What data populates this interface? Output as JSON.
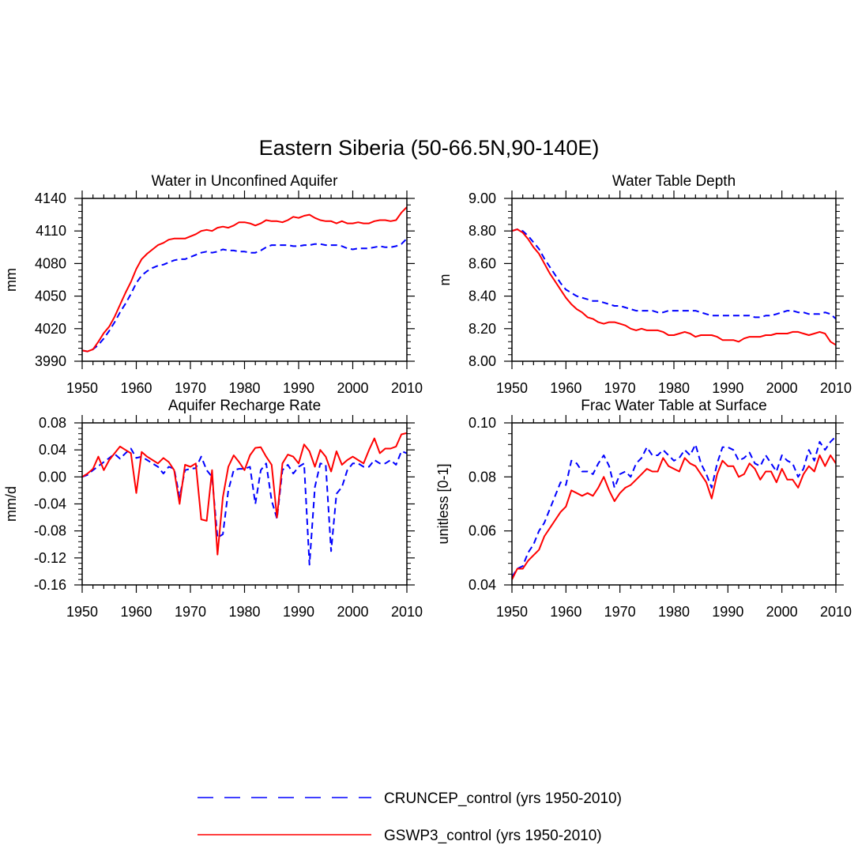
{
  "chart_data": {
    "title": "Eastern Siberia (50-66.5N,90-140E)",
    "legend": [
      {
        "name": "CRUNCEP_control (yrs 1950-2010)",
        "color": "#0000ff",
        "style": "dashed"
      },
      {
        "name": "GSWP3_control (yrs 1950-2010)",
        "color": "#ff0000",
        "style": "solid"
      }
    ],
    "panels": [
      {
        "type": "line",
        "title": "Water in Unconfined Aquifer",
        "xlabel": "",
        "ylabel": "mm",
        "xlim": [
          1950,
          2010
        ],
        "ylim": [
          3990,
          4140
        ],
        "xticks": [
          1950,
          1960,
          1970,
          1980,
          1990,
          2000,
          2010
        ],
        "yticks": [
          3990,
          4020,
          4050,
          4080,
          4110,
          4140
        ],
        "ytick_labels": [
          "3990",
          "4020",
          "4050",
          "4080",
          "4110",
          "4140"
        ],
        "x": [
          1950,
          1951,
          1952,
          1953,
          1954,
          1955,
          1956,
          1957,
          1958,
          1959,
          1960,
          1961,
          1962,
          1963,
          1964,
          1965,
          1966,
          1967,
          1968,
          1969,
          1970,
          1971,
          1972,
          1973,
          1974,
          1975,
          1976,
          1977,
          1978,
          1979,
          1980,
          1981,
          1982,
          1983,
          1984,
          1985,
          1986,
          1987,
          1988,
          1989,
          1990,
          1991,
          1992,
          1993,
          1994,
          1995,
          1996,
          1997,
          1998,
          1999,
          2000,
          2001,
          2002,
          2003,
          2004,
          2005,
          2006,
          2007,
          2008,
          2009,
          2010
        ],
        "series": [
          {
            "name": "CRUNCEP_control (yrs 1950-2010)",
            "values": [
              4000,
              3999,
              4001,
              4005,
              4011,
              4018,
              4026,
              4035,
              4043,
              4052,
              4062,
              4069,
              4073,
              4076,
              4078,
              4079,
              4081,
              4083,
              4084,
              4084,
              4086,
              4088,
              4090,
              4091,
              4090,
              4091,
              4093,
              4092,
              4092,
              4091,
              4091,
              4090,
              4090,
              4092,
              4095,
              4097,
              4097,
              4097,
              4097,
              4096,
              4096,
              4097,
              4097,
              4098,
              4098,
              4097,
              4097,
              4097,
              4096,
              4094,
              4093,
              4094,
              4094,
              4094,
              4095,
              4096,
              4095,
              4095,
              4096,
              4098,
              4103
            ]
          },
          {
            "name": "GSWP3_control (yrs 1950-2010)",
            "values": [
              4000,
              3999,
              4001,
              4008,
              4016,
              4022,
              4031,
              4042,
              4053,
              4063,
              4075,
              4084,
              4089,
              4093,
              4097,
              4099,
              4102,
              4103,
              4103,
              4103,
              4105,
              4107,
              4110,
              4111,
              4110,
              4113,
              4114,
              4113,
              4115,
              4118,
              4118,
              4117,
              4115,
              4117,
              4120,
              4119,
              4119,
              4118,
              4120,
              4123,
              4122,
              4124,
              4125,
              4122,
              4120,
              4119,
              4119,
              4117,
              4119,
              4117,
              4117,
              4118,
              4117,
              4117,
              4119,
              4120,
              4120,
              4119,
              4120,
              4127,
              4132
            ]
          }
        ]
      },
      {
        "type": "line",
        "title": "Water Table Depth",
        "xlabel": "",
        "ylabel": "m",
        "xlim": [
          1950,
          2010
        ],
        "ylim": [
          8.0,
          9.0
        ],
        "xticks": [
          1950,
          1960,
          1970,
          1980,
          1990,
          2000,
          2010
        ],
        "yticks": [
          8.0,
          8.2,
          8.4,
          8.6,
          8.8,
          9.0
        ],
        "ytick_labels": [
          "8.00",
          "8.20",
          "8.40",
          "8.60",
          "8.80",
          "9.00"
        ],
        "x": [
          1950,
          1951,
          1952,
          1953,
          1954,
          1955,
          1956,
          1957,
          1958,
          1959,
          1960,
          1961,
          1962,
          1963,
          1964,
          1965,
          1966,
          1967,
          1968,
          1969,
          1970,
          1971,
          1972,
          1973,
          1974,
          1975,
          1976,
          1977,
          1978,
          1979,
          1980,
          1981,
          1982,
          1983,
          1984,
          1985,
          1986,
          1987,
          1988,
          1989,
          1990,
          1991,
          1992,
          1993,
          1994,
          1995,
          1996,
          1997,
          1998,
          1999,
          2000,
          2001,
          2002,
          2003,
          2004,
          2005,
          2006,
          2007,
          2008,
          2009,
          2010
        ],
        "series": [
          {
            "name": "CRUNCEP_control (yrs 1950-2010)",
            "values": [
              8.8,
              8.81,
              8.8,
              8.77,
              8.73,
              8.69,
              8.63,
              8.58,
              8.53,
              8.48,
              8.44,
              8.42,
              8.4,
              8.39,
              8.38,
              8.37,
              8.37,
              8.36,
              8.35,
              8.34,
              8.34,
              8.33,
              8.32,
              8.31,
              8.31,
              8.31,
              8.31,
              8.3,
              8.3,
              8.31,
              8.31,
              8.31,
              8.31,
              8.31,
              8.31,
              8.3,
              8.29,
              8.28,
              8.28,
              8.28,
              8.28,
              8.28,
              8.28,
              8.28,
              8.28,
              8.27,
              8.27,
              8.28,
              8.28,
              8.29,
              8.3,
              8.31,
              8.31,
              8.3,
              8.3,
              8.29,
              8.29,
              8.29,
              8.3,
              8.29,
              8.26
            ]
          },
          {
            "name": "GSWP3_control (yrs 1950-2010)",
            "values": [
              8.8,
              8.81,
              8.79,
              8.75,
              8.7,
              8.66,
              8.6,
              8.54,
              8.49,
              8.44,
              8.39,
              8.35,
              8.32,
              8.3,
              8.27,
              8.26,
              8.24,
              8.23,
              8.24,
              8.24,
              8.23,
              8.22,
              8.2,
              8.19,
              8.2,
              8.19,
              8.19,
              8.19,
              8.18,
              8.16,
              8.16,
              8.17,
              8.18,
              8.17,
              8.15,
              8.16,
              8.16,
              8.16,
              8.15,
              8.13,
              8.13,
              8.13,
              8.12,
              8.14,
              8.15,
              8.15,
              8.15,
              8.16,
              8.16,
              8.17,
              8.17,
              8.17,
              8.18,
              8.18,
              8.17,
              8.16,
              8.17,
              8.18,
              8.17,
              8.12,
              8.1
            ]
          }
        ]
      },
      {
        "type": "line",
        "title": "Aquifer Recharge Rate",
        "xlabel": "",
        "ylabel": "mm/d",
        "xlim": [
          1950,
          2010
        ],
        "ylim": [
          -0.16,
          0.08
        ],
        "xticks": [
          1950,
          1960,
          1970,
          1980,
          1990,
          2000,
          2010
        ],
        "yticks": [
          -0.16,
          -0.12,
          -0.08,
          -0.04,
          0.0,
          0.04,
          0.08
        ],
        "ytick_labels": [
          "-0.16",
          "-0.12",
          "-0.08",
          "-0.04",
          "0.00",
          "0.04",
          "0.08"
        ],
        "x": [
          1950,
          1951,
          1952,
          1953,
          1954,
          1955,
          1956,
          1957,
          1958,
          1959,
          1960,
          1961,
          1962,
          1963,
          1964,
          1965,
          1966,
          1967,
          1968,
          1969,
          1970,
          1971,
          1972,
          1973,
          1974,
          1975,
          1976,
          1977,
          1978,
          1979,
          1980,
          1981,
          1982,
          1983,
          1984,
          1985,
          1986,
          1987,
          1988,
          1989,
          1990,
          1991,
          1992,
          1993,
          1994,
          1995,
          1996,
          1997,
          1998,
          1999,
          2000,
          2001,
          2002,
          2003,
          2004,
          2005,
          2006,
          2007,
          2008,
          2009,
          2010
        ],
        "series": [
          {
            "name": "CRUNCEP_control (yrs 1950-2010)",
            "values": [
              0.0,
              0.003,
              0.01,
              0.016,
              0.022,
              0.028,
              0.034,
              0.027,
              0.035,
              0.042,
              0.028,
              0.03,
              0.025,
              0.02,
              0.015,
              0.005,
              0.015,
              0.012,
              -0.03,
              0.01,
              0.012,
              0.013,
              0.03,
              0.01,
              0.0,
              -0.09,
              -0.085,
              -0.02,
              0.01,
              0.012,
              0.012,
              0.015,
              -0.04,
              0.01,
              0.02,
              -0.035,
              -0.062,
              0.01,
              0.018,
              0.005,
              0.015,
              0.02,
              -0.13,
              -0.015,
              0.02,
              0.018,
              -0.11,
              -0.025,
              -0.015,
              0.01,
              0.02,
              0.02,
              0.015,
              0.015,
              0.025,
              0.02,
              0.02,
              0.025,
              0.018,
              0.038,
              0.035
            ]
          },
          {
            "name": "GSWP3_control (yrs 1950-2010)",
            "values": [
              0.0,
              0.005,
              0.012,
              0.03,
              0.01,
              0.025,
              0.035,
              0.045,
              0.04,
              0.035,
              -0.024,
              0.037,
              0.03,
              0.025,
              0.02,
              0.028,
              0.022,
              0.01,
              -0.04,
              0.018,
              0.015,
              0.02,
              -0.063,
              -0.065,
              0.01,
              -0.115,
              -0.03,
              0.015,
              0.032,
              0.022,
              0.01,
              0.032,
              0.043,
              0.044,
              0.03,
              0.018,
              -0.06,
              0.02,
              0.033,
              0.03,
              0.02,
              0.048,
              0.038,
              0.015,
              0.04,
              0.03,
              0.008,
              0.038,
              0.018,
              0.025,
              0.03,
              0.025,
              0.02,
              0.04,
              0.057,
              0.035,
              0.042,
              0.042,
              0.045,
              0.063,
              0.065
            ]
          }
        ]
      },
      {
        "type": "line",
        "title": "Frac Water Table at Surface",
        "xlabel": "",
        "ylabel": "unitless [0-1]",
        "xlim": [
          1950,
          2010
        ],
        "ylim": [
          0.04,
          0.1
        ],
        "xticks": [
          1950,
          1960,
          1970,
          1980,
          1990,
          2000,
          2010
        ],
        "yticks": [
          0.04,
          0.06,
          0.08,
          0.1
        ],
        "ytick_labels": [
          "0.04",
          "0.06",
          "0.08",
          "0.10"
        ],
        "x": [
          1950,
          1951,
          1952,
          1953,
          1954,
          1955,
          1956,
          1957,
          1958,
          1959,
          1960,
          1961,
          1962,
          1963,
          1964,
          1965,
          1966,
          1967,
          1968,
          1969,
          1970,
          1971,
          1972,
          1973,
          1974,
          1975,
          1976,
          1977,
          1978,
          1979,
          1980,
          1981,
          1982,
          1983,
          1984,
          1985,
          1986,
          1987,
          1988,
          1989,
          1990,
          1991,
          1992,
          1993,
          1994,
          1995,
          1996,
          1997,
          1998,
          1999,
          2000,
          2001,
          2002,
          2003,
          2004,
          2005,
          2006,
          2007,
          2008,
          2009,
          2010
        ],
        "series": [
          {
            "name": "CRUNCEP_control (yrs 1950-2010)",
            "values": [
              0.043,
              0.046,
              0.047,
              0.052,
              0.055,
              0.06,
              0.063,
              0.068,
              0.073,
              0.078,
              0.077,
              0.086,
              0.085,
              0.082,
              0.082,
              0.081,
              0.085,
              0.088,
              0.084,
              0.076,
              0.081,
              0.082,
              0.08,
              0.085,
              0.087,
              0.091,
              0.088,
              0.088,
              0.09,
              0.088,
              0.086,
              0.087,
              0.09,
              0.088,
              0.092,
              0.085,
              0.081,
              0.076,
              0.085,
              0.091,
              0.091,
              0.09,
              0.086,
              0.087,
              0.089,
              0.085,
              0.084,
              0.088,
              0.085,
              0.082,
              0.088,
              0.086,
              0.085,
              0.08,
              0.083,
              0.09,
              0.086,
              0.093,
              0.09,
              0.093,
              0.095
            ]
          },
          {
            "name": "GSWP3_control (yrs 1950-2010)",
            "values": [
              0.042,
              0.046,
              0.046,
              0.049,
              0.051,
              0.053,
              0.058,
              0.061,
              0.064,
              0.067,
              0.069,
              0.075,
              0.074,
              0.073,
              0.074,
              0.073,
              0.076,
              0.08,
              0.075,
              0.071,
              0.074,
              0.076,
              0.077,
              0.079,
              0.081,
              0.083,
              0.082,
              0.082,
              0.087,
              0.084,
              0.083,
              0.082,
              0.087,
              0.085,
              0.084,
              0.081,
              0.078,
              0.072,
              0.081,
              0.086,
              0.084,
              0.084,
              0.08,
              0.081,
              0.085,
              0.083,
              0.079,
              0.082,
              0.082,
              0.078,
              0.083,
              0.079,
              0.079,
              0.076,
              0.081,
              0.084,
              0.082,
              0.088,
              0.084,
              0.088,
              0.085
            ]
          }
        ]
      }
    ]
  }
}
